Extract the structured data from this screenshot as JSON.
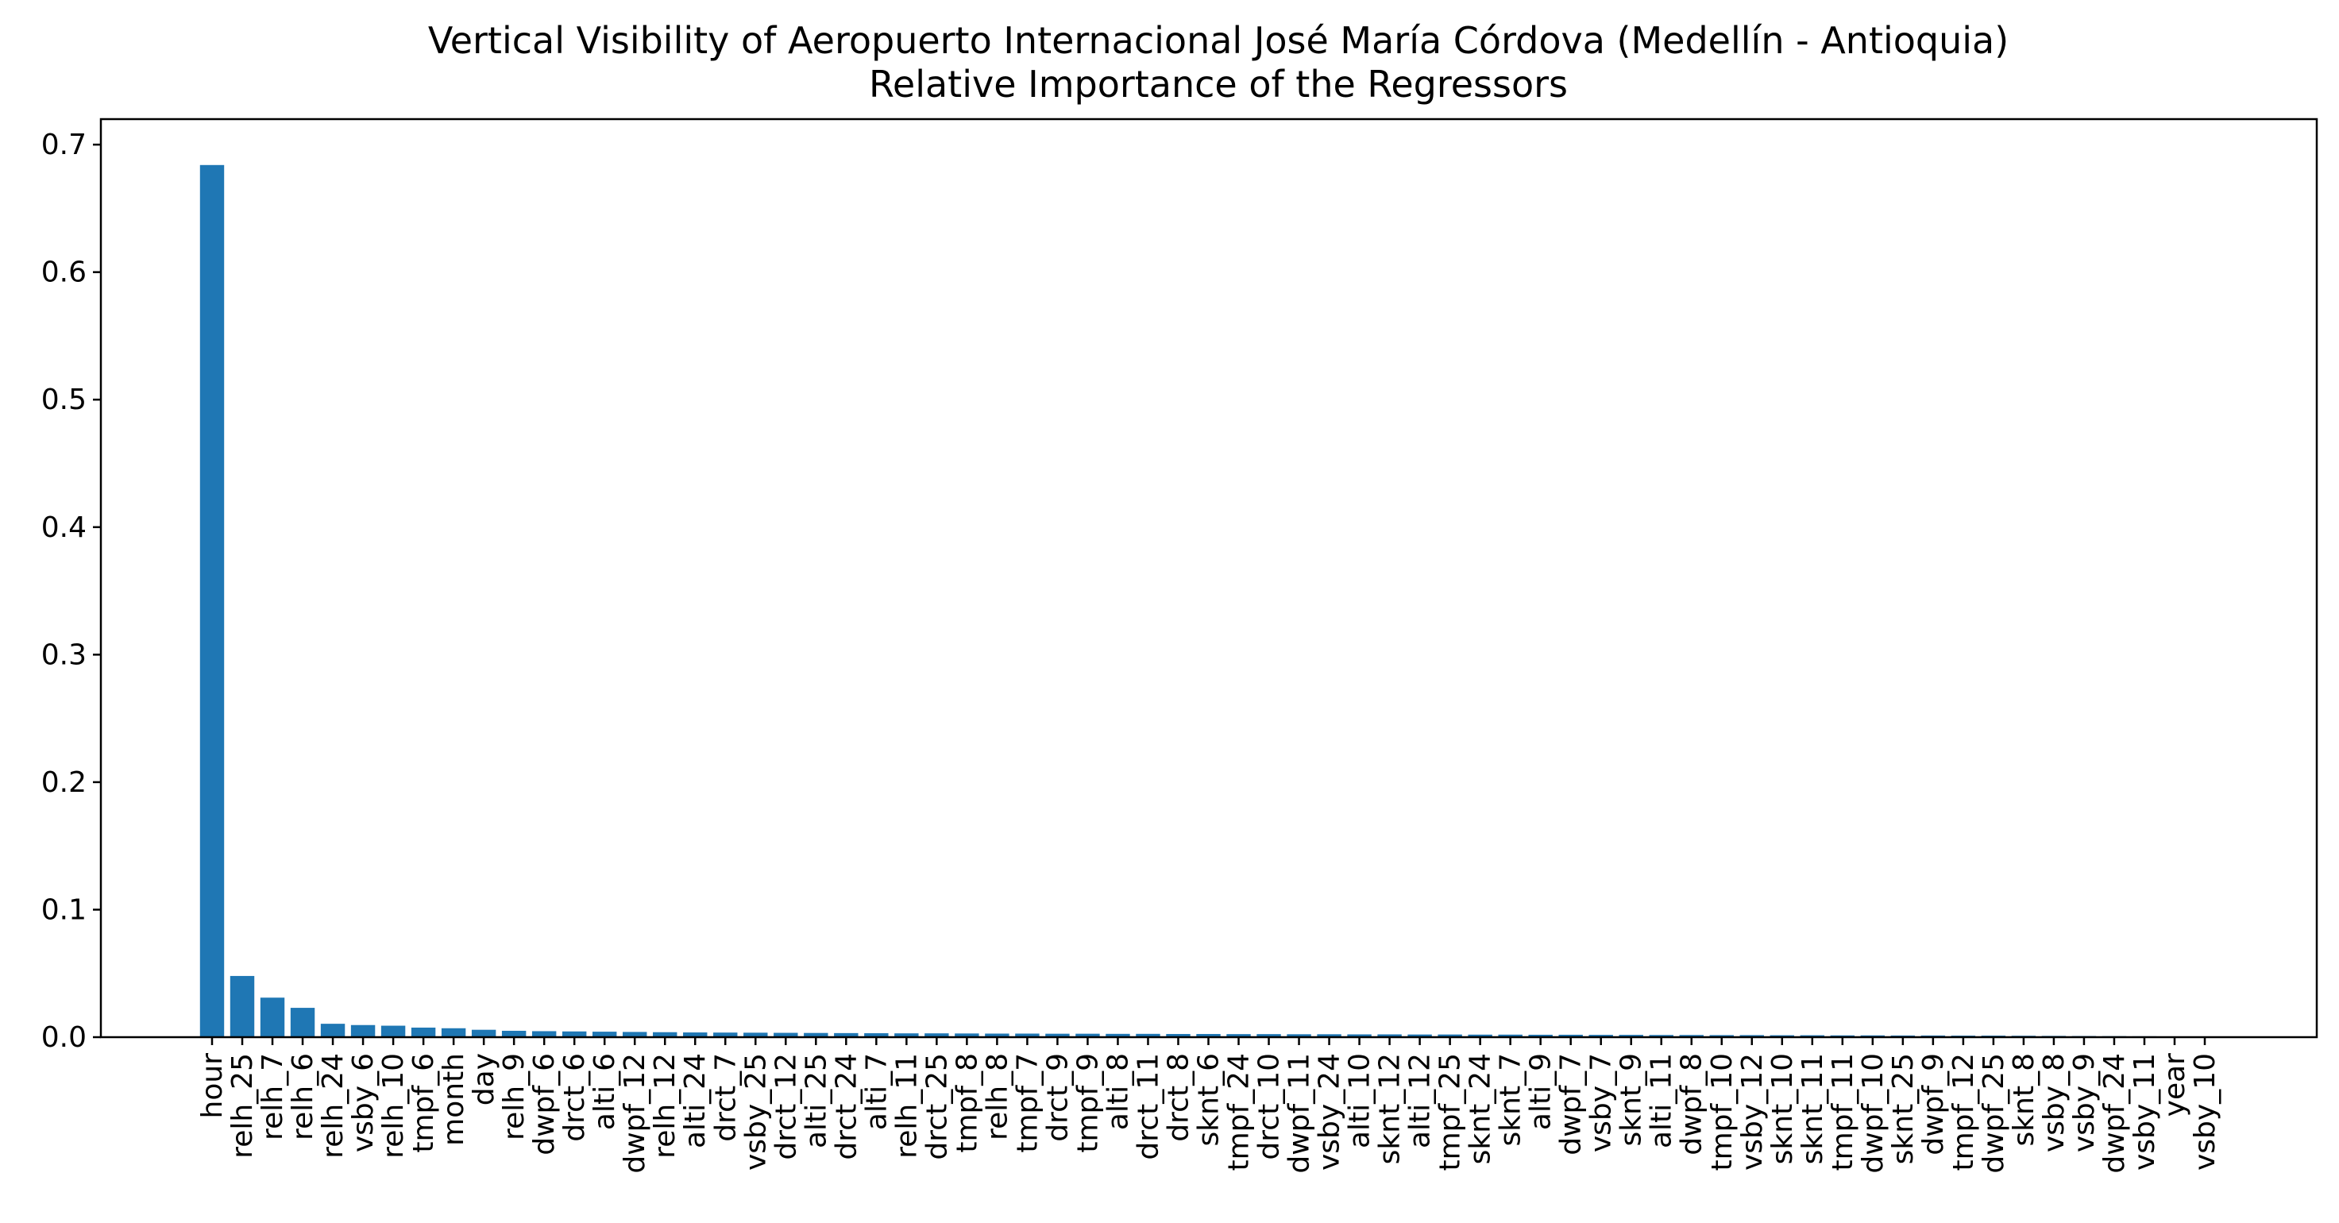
{
  "chart_data": {
    "type": "bar",
    "title": "Vertical Visibility of Aeropuerto Internacional José María Córdova (Medellín - Antioquia)",
    "subtitle": "Relative Importance of the Regressors",
    "xlabel": "",
    "ylabel": "",
    "ylim": [
      0,
      0.72
    ],
    "yticks": [
      0.0,
      0.1,
      0.2,
      0.3,
      0.4,
      0.5,
      0.6,
      0.7
    ],
    "ytick_labels": [
      "0.0",
      "0.1",
      "0.2",
      "0.3",
      "0.4",
      "0.5",
      "0.6",
      "0.7"
    ],
    "grid": false,
    "color": "#1f77b4",
    "categories": [
      "hour",
      "relh_25",
      "relh_7",
      "relh_6",
      "relh_24",
      "vsby_6",
      "relh_10",
      "tmpf_6",
      "month",
      "day",
      "relh_9",
      "dwpf_6",
      "drct_6",
      "alti_6",
      "dwpf_12",
      "relh_12",
      "alti_24",
      "drct_7",
      "vsby_25",
      "drct_12",
      "alti_25",
      "drct_24",
      "alti_7",
      "relh_11",
      "drct_25",
      "tmpf_8",
      "relh_8",
      "tmpf_7",
      "drct_9",
      "tmpf_9",
      "alti_8",
      "drct_11",
      "drct_8",
      "sknt_6",
      "tmpf_24",
      "drct_10",
      "dwpf_11",
      "vsby_24",
      "alti_10",
      "sknt_12",
      "alti_12",
      "tmpf_25",
      "sknt_24",
      "sknt_7",
      "alti_9",
      "dwpf_7",
      "vsby_7",
      "sknt_9",
      "alti_11",
      "dwpf_8",
      "tmpf_10",
      "vsby_12",
      "sknt_10",
      "sknt_11",
      "tmpf_11",
      "dwpf_10",
      "sknt_25",
      "dwpf_9",
      "tmpf_12",
      "dwpf_25",
      "sknt_8",
      "vsby_8",
      "vsby_9",
      "dwpf_24",
      "vsby_11",
      "year",
      "vsby_10"
    ],
    "values": [
      0.684,
      0.048,
      0.031,
      0.023,
      0.0105,
      0.0095,
      0.009,
      0.0075,
      0.007,
      0.0058,
      0.005,
      0.0047,
      0.0045,
      0.0043,
      0.0041,
      0.0039,
      0.0037,
      0.0036,
      0.0035,
      0.0034,
      0.0033,
      0.0032,
      0.0031,
      0.003,
      0.003,
      0.0029,
      0.0028,
      0.0028,
      0.0027,
      0.0027,
      0.0026,
      0.0026,
      0.0025,
      0.0025,
      0.0024,
      0.0024,
      0.0023,
      0.0023,
      0.0022,
      0.0022,
      0.0021,
      0.0021,
      0.002,
      0.002,
      0.0019,
      0.0019,
      0.0018,
      0.0018,
      0.0017,
      0.0017,
      0.0016,
      0.0016,
      0.0015,
      0.0015,
      0.0014,
      0.0014,
      0.0013,
      0.0013,
      0.0012,
      0.0012,
      0.0011,
      0.001,
      0.0009,
      0.0008,
      0.0007,
      0.0006,
      0.0005
    ]
  }
}
